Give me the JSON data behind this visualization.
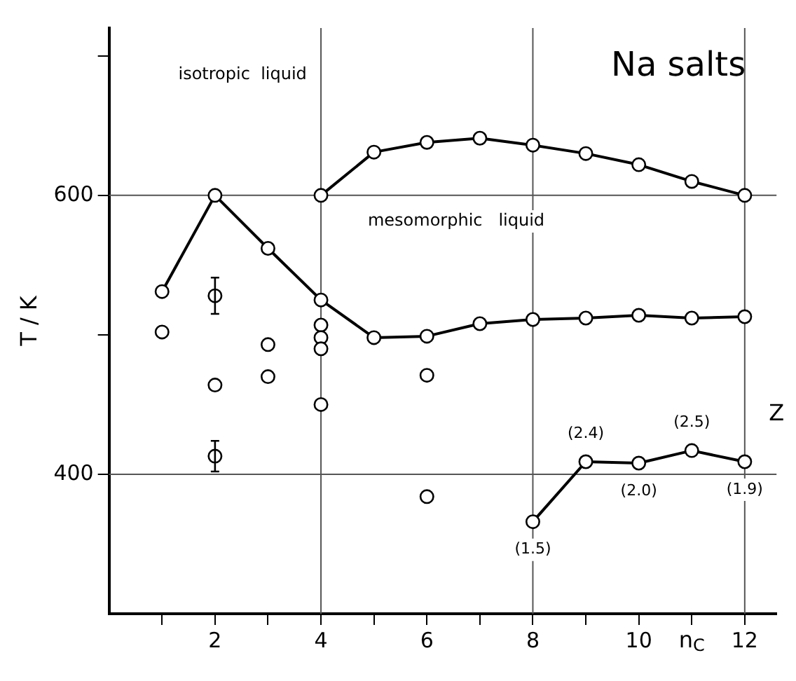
{
  "chart_data": {
    "type": "line",
    "title": "Na salts",
    "xlabel": "n$_{C}$",
    "ylabel": "T / K",
    "xlim": [
      0,
      12.6
    ],
    "ylim": [
      300,
      720
    ],
    "xticks": [
      {
        "value": 1,
        "label": null
      },
      2,
      {
        "value": 3,
        "label": null
      },
      4,
      {
        "value": 5,
        "label": null
      },
      6,
      {
        "value": 7,
        "label": null
      },
      8,
      {
        "value": 9,
        "label": null
      },
      10,
      {
        "value": 11,
        "label": null
      },
      12
    ],
    "yticks": [
      400,
      {
        "value": 500,
        "label": null
      },
      600,
      {
        "value": 700,
        "label": null
      }
    ],
    "grid": false,
    "legend": false,
    "marker": "circle",
    "line_style": "solid",
    "ref_lines": [
      {
        "axis": "x",
        "value": 4
      },
      {
        "axis": "x",
        "value": 8
      },
      {
        "axis": "x",
        "value": 12
      },
      {
        "axis": "y",
        "value": 400
      },
      {
        "axis": "y",
        "value": 600
      }
    ],
    "annotations": [
      "isotropic  liquid",
      "mesomorphic   liquid",
      "Z",
      {
        "text": "(1.5)",
        "x": 8,
        "y": 366
      },
      {
        "text": "(2.4)",
        "x": 9,
        "y": 409
      },
      {
        "text": "(2.0)",
        "x": 10,
        "y": 408
      },
      {
        "text": "(2.5)",
        "x": 11,
        "y": 417
      },
      {
        "text": "(1.9)",
        "x": 12,
        "y": 409
      }
    ],
    "series": [
      {
        "type": "line",
        "color": "#000000",
        "x": [
          1,
          2,
          3,
          4,
          5,
          6,
          7,
          8,
          9,
          10,
          11,
          12
        ],
        "values": [
          531,
          600,
          562,
          525,
          498,
          499,
          508,
          511,
          512,
          514,
          512,
          513
        ]
      },
      {
        "type": "line",
        "color": "#000000",
        "x": [
          4,
          5,
          6,
          7,
          8,
          9,
          10,
          11,
          12
        ],
        "values": [
          600,
          631,
          638,
          641,
          636,
          630,
          622,
          610,
          600
        ]
      },
      {
        "type": "line",
        "color": "#000000",
        "x": [
          8,
          9,
          10,
          11,
          12
        ],
        "values": [
          366,
          409,
          408,
          417,
          409
        ]
      },
      {
        "type": "scatter",
        "color": "#000000",
        "x": [
          1,
          2,
          2,
          2,
          3,
          3,
          4,
          4,
          4,
          4,
          6,
          6
        ],
        "values": [
          502,
          528,
          464,
          413,
          493,
          470,
          507,
          498,
          490,
          450,
          471,
          384
        ],
        "errors": [
          null,
          13,
          null,
          11,
          null,
          null,
          null,
          null,
          null,
          null,
          null,
          null
        ]
      }
    ]
  }
}
